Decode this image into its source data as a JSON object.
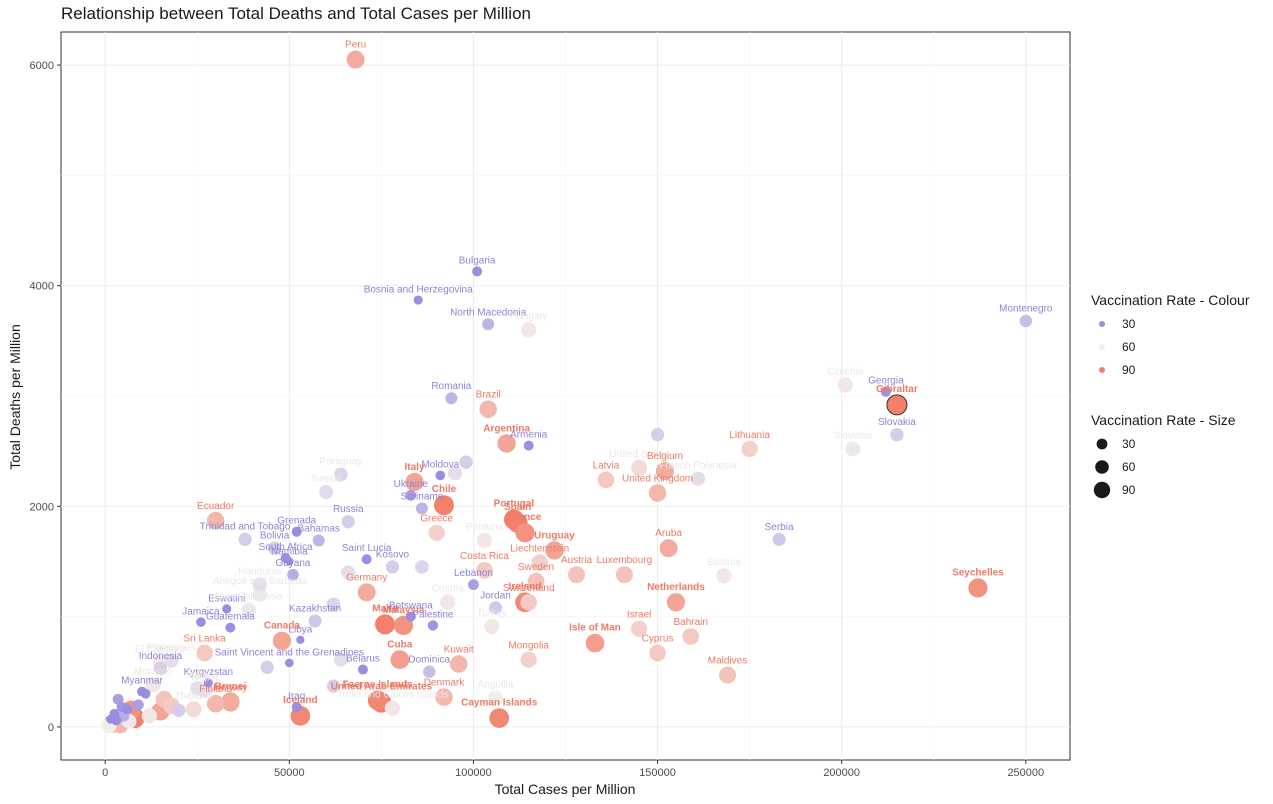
{
  "chart_data": {
    "type": "scatter",
    "title": "Relationship between Total Deaths and Total Cases per Million",
    "xlabel": "Total Cases per Million",
    "ylabel": "Total Deaths per Million",
    "xlim": [
      -12000,
      262000
    ],
    "ylim": [
      -300,
      6300
    ],
    "x_ticks": [
      0,
      50000,
      100000,
      150000,
      200000,
      250000
    ],
    "y_ticks": [
      0,
      2000,
      4000,
      6000
    ],
    "grid": true,
    "legend_position": "right",
    "legend": {
      "colour_title": "Vaccination Rate - Colour",
      "size_title": "Vaccination Rate - Size",
      "levels": [
        30,
        60,
        90
      ]
    },
    "color_scale": {
      "low": "#9b8ee0",
      "mid": "#f3eeee",
      "high": "#f2806a"
    },
    "points": [
      {
        "country": "Bulgaria",
        "x": 101000,
        "y": 4130,
        "vacc": 30
      },
      {
        "country": "Bosnia and Herzegovina",
        "x": 85000,
        "y": 3870,
        "vacc": 25
      },
      {
        "country": "North Macedonia",
        "x": 104000,
        "y": 3650,
        "vacc": 42
      },
      {
        "country": "Hungary",
        "x": 115000,
        "y": 3600,
        "vacc": 62
      },
      {
        "country": "Montenegro",
        "x": 250000,
        "y": 3680,
        "vacc": 45
      },
      {
        "country": "Peru",
        "x": 68000,
        "y": 6050,
        "vacc": 78
      },
      {
        "country": "Georgia",
        "x": 212000,
        "y": 3040,
        "vacc": 32
      },
      {
        "country": "Czechia",
        "x": 201000,
        "y": 3100,
        "vacc": 62
      },
      {
        "country": "Gibraltar",
        "x": 215000,
        "y": 2920,
        "vacc": 120
      },
      {
        "country": "Slovakia",
        "x": 215000,
        "y": 2650,
        "vacc": 50
      },
      {
        "country": "Slovenia",
        "x": 203000,
        "y": 2520,
        "vacc": 58
      },
      {
        "country": "Lithuania",
        "x": 175000,
        "y": 2520,
        "vacc": 68
      },
      {
        "country": "Romania",
        "x": 94000,
        "y": 2980,
        "vacc": 42
      },
      {
        "country": "Brazil",
        "x": 104000,
        "y": 2880,
        "vacc": 75
      },
      {
        "country": "Argentina",
        "x": 109000,
        "y": 2570,
        "vacc": 80
      },
      {
        "country": "Armenia",
        "x": 115000,
        "y": 2550,
        "vacc": 30
      },
      {
        "country": "Italy",
        "x": 84000,
        "y": 2220,
        "vacc": 80
      },
      {
        "country": "Moldova",
        "x": 91000,
        "y": 2280,
        "vacc": 28
      },
      {
        "country": "Paraguay",
        "x": 64000,
        "y": 2290,
        "vacc": 52
      },
      {
        "country": "Tunisia",
        "x": 60000,
        "y": 2130,
        "vacc": 54
      },
      {
        "country": "Ukraine",
        "x": 83000,
        "y": 2100,
        "vacc": 35
      },
      {
        "country": "Chile",
        "x": 92000,
        "y": 2010,
        "vacc": 90
      },
      {
        "country": "United States",
        "x": 145000,
        "y": 2350,
        "vacc": 65
      },
      {
        "country": "Belgium",
        "x": 152000,
        "y": 2320,
        "vacc": 78
      },
      {
        "country": "Latvia",
        "x": 136000,
        "y": 2240,
        "vacc": 70
      },
      {
        "country": "United Kingdom",
        "x": 150000,
        "y": 2120,
        "vacc": 75
      },
      {
        "country": "French Polynesia",
        "x": 161000,
        "y": 2250,
        "vacc": 55
      },
      {
        "country": "Portugal",
        "x": 111000,
        "y": 1880,
        "vacc": 95
      },
      {
        "country": "Spain",
        "x": 112000,
        "y": 1850,
        "vacc": 92
      },
      {
        "country": "France",
        "x": 114000,
        "y": 1760,
        "vacc": 85
      },
      {
        "country": "Uruguay",
        "x": 122000,
        "y": 1600,
        "vacc": 80
      },
      {
        "country": "Greece",
        "x": 90000,
        "y": 1760,
        "vacc": 68
      },
      {
        "country": "Panama",
        "x": 103000,
        "y": 1690,
        "vacc": 62
      },
      {
        "country": "Liechtenstein",
        "x": 118000,
        "y": 1490,
        "vacc": 68
      },
      {
        "country": "Aruba",
        "x": 153000,
        "y": 1620,
        "vacc": 78
      },
      {
        "country": "Serbia",
        "x": 183000,
        "y": 1700,
        "vacc": 48
      },
      {
        "country": "Costa Rica",
        "x": 103000,
        "y": 1420,
        "vacc": 70
      },
      {
        "country": "Sweden",
        "x": 117000,
        "y": 1320,
        "vacc": 72
      },
      {
        "country": "Austria",
        "x": 128000,
        "y": 1380,
        "vacc": 72
      },
      {
        "country": "Luxembourg",
        "x": 141000,
        "y": 1380,
        "vacc": 72
      },
      {
        "country": "Estonia",
        "x": 168000,
        "y": 1370,
        "vacc": 62
      },
      {
        "country": "Seychelles",
        "x": 237000,
        "y": 1260,
        "vacc": 85
      },
      {
        "country": "Switzerland",
        "x": 115000,
        "y": 1130,
        "vacc": 70
      },
      {
        "country": "Ireland",
        "x": 114000,
        "y": 1130,
        "vacc": 88
      },
      {
        "country": "Netherlands",
        "x": 155000,
        "y": 1130,
        "vacc": 80
      },
      {
        "country": "Jordan",
        "x": 106000,
        "y": 1080,
        "vacc": 48
      },
      {
        "country": "Lebanon",
        "x": 100000,
        "y": 1290,
        "vacc": 35
      },
      {
        "country": "Kosovo",
        "x": 78000,
        "y": 1450,
        "vacc": 50
      },
      {
        "country": "Germany",
        "x": 71000,
        "y": 1220,
        "vacc": 78
      },
      {
        "country": "Croatia",
        "x": 93000,
        "y": 1130,
        "vacc": 62
      },
      {
        "country": "Ecuador",
        "x": 30000,
        "y": 1870,
        "vacc": 75
      },
      {
        "country": "Grenada",
        "x": 52000,
        "y": 1770,
        "vacc": 30
      },
      {
        "country": "Russia",
        "x": 66000,
        "y": 1860,
        "vacc": 50
      },
      {
        "country": "Suriname",
        "x": 86000,
        "y": 1980,
        "vacc": 42
      },
      {
        "country": "Bolivia",
        "x": 46000,
        "y": 1620,
        "vacc": 50
      },
      {
        "country": "Bahamas",
        "x": 58000,
        "y": 1690,
        "vacc": 42
      },
      {
        "country": "Trinidad and Tobago",
        "x": 38000,
        "y": 1700,
        "vacc": 50
      },
      {
        "country": "Saint Lucia",
        "x": 71000,
        "y": 1520,
        "vacc": 30
      },
      {
        "country": "South Africa",
        "x": 49000,
        "y": 1530,
        "vacc": 30
      },
      {
        "country": "Namibia",
        "x": 50000,
        "y": 1500,
        "vacc": 20
      },
      {
        "country": "Guyana",
        "x": 51000,
        "y": 1380,
        "vacc": 40
      },
      {
        "country": "Honduras",
        "x": 42000,
        "y": 1290,
        "vacc": 55
      },
      {
        "country": "Antigua and Barbuda",
        "x": 42000,
        "y": 1200,
        "vacc": 58
      },
      {
        "country": "Eswatini",
        "x": 33000,
        "y": 1070,
        "vacc": 25
      },
      {
        "country": "New Caledonia",
        "x": 39000,
        "y": 1060,
        "vacc": 58
      },
      {
        "country": "Kazakhstan",
        "x": 57000,
        "y": 960,
        "vacc": 48
      },
      {
        "country": "Jamaica",
        "x": 26000,
        "y": 950,
        "vacc": 28
      },
      {
        "country": "Guatemala",
        "x": 34000,
        "y": 900,
        "vacc": 30
      },
      {
        "country": "Malta",
        "x": 76000,
        "y": 930,
        "vacc": 90
      },
      {
        "country": "Malaysia",
        "x": 81000,
        "y": 920,
        "vacc": 85
      },
      {
        "country": "Botswana",
        "x": 83000,
        "y": 1000,
        "vacc": 30
      },
      {
        "country": "Palestine",
        "x": 89000,
        "y": 920,
        "vacc": 32
      },
      {
        "country": "Turkey",
        "x": 105000,
        "y": 910,
        "vacc": 62
      },
      {
        "country": "Israel",
        "x": 145000,
        "y": 890,
        "vacc": 68
      },
      {
        "country": "Bahrain",
        "x": 159000,
        "y": 820,
        "vacc": 70
      },
      {
        "country": "Isle of Man",
        "x": 133000,
        "y": 760,
        "vacc": 82
      },
      {
        "country": "Cyprus",
        "x": 150000,
        "y": 670,
        "vacc": 70
      },
      {
        "country": "Maldives",
        "x": 169000,
        "y": 470,
        "vacc": 72
      },
      {
        "country": "Libya",
        "x": 53000,
        "y": 790,
        "vacc": 20
      },
      {
        "country": "Canada",
        "x": 48000,
        "y": 780,
        "vacc": 80
      },
      {
        "country": "Sri Lanka",
        "x": 27000,
        "y": 670,
        "vacc": 70
      },
      {
        "country": "El Salvador",
        "x": 15000,
        "y": 580,
        "vacc": 62
      },
      {
        "country": "Philippines",
        "x": 18000,
        "y": 600,
        "vacc": 55
      },
      {
        "country": "Indonesia",
        "x": 15000,
        "y": 530,
        "vacc": 50
      },
      {
        "country": "Cuba",
        "x": 80000,
        "y": 610,
        "vacc": 82
      },
      {
        "country": "Kuwait",
        "x": 96000,
        "y": 570,
        "vacc": 75
      },
      {
        "country": "Mongolia",
        "x": 115000,
        "y": 610,
        "vacc": 68
      },
      {
        "country": "Saint Vincent and the Grenadines",
        "x": 50000,
        "y": 580,
        "vacc": 22
      },
      {
        "country": "Kyrgyzstan",
        "x": 28000,
        "y": 400,
        "vacc": 25
      },
      {
        "country": "India",
        "x": 25000,
        "y": 350,
        "vacc": 55
      },
      {
        "country": "Dominica",
        "x": 88000,
        "y": 500,
        "vacc": 45
      },
      {
        "country": "Belarus",
        "x": 70000,
        "y": 520,
        "vacc": 30
      },
      {
        "country": "Denmark",
        "x": 92000,
        "y": 270,
        "vacc": 75
      },
      {
        "country": "Anguilla",
        "x": 106000,
        "y": 260,
        "vacc": 60
      },
      {
        "country": "Myanmar",
        "x": 10000,
        "y": 320,
        "vacc": 30
      },
      {
        "country": "Morocco",
        "x": 13000,
        "y": 380,
        "vacc": 62
      },
      {
        "country": "Nepal",
        "x": 27000,
        "y": 330,
        "vacc": 55
      },
      {
        "country": "Thailand",
        "x": 24000,
        "y": 160,
        "vacc": 65
      },
      {
        "country": "Norway",
        "x": 34000,
        "y": 220,
        "vacc": 78
      },
      {
        "country": "Finland",
        "x": 30000,
        "y": 210,
        "vacc": 75
      },
      {
        "country": "Brunei",
        "x": 34000,
        "y": 230,
        "vacc": 80
      },
      {
        "country": "Iceland",
        "x": 53000,
        "y": 100,
        "vacc": 88
      },
      {
        "country": "Iraq",
        "x": 52000,
        "y": 180,
        "vacc": 30
      },
      {
        "country": "Faeroe Islands",
        "x": 74000,
        "y": 240,
        "vacc": 88
      },
      {
        "country": "United Arab Emirates",
        "x": 75000,
        "y": 220,
        "vacc": 98
      },
      {
        "country": "Turks and Caicos Islands",
        "x": 78000,
        "y": 170,
        "vacc": 62
      },
      {
        "country": "Cayman Islands",
        "x": 107000,
        "y": 80,
        "vacc": 88
      },
      {
        "country": "",
        "x": 1000,
        "y": 10,
        "vacc": 60
      },
      {
        "country": "",
        "x": 2000,
        "y": 30,
        "vacc": 80
      },
      {
        "country": "",
        "x": 3000,
        "y": 60,
        "vacc": 30
      },
      {
        "country": "",
        "x": 4000,
        "y": 20,
        "vacc": 75
      },
      {
        "country": "",
        "x": 5000,
        "y": 100,
        "vacc": 40
      },
      {
        "country": "",
        "x": 6000,
        "y": 160,
        "vacc": 30
      },
      {
        "country": "",
        "x": 7000,
        "y": 150,
        "vacc": 85
      },
      {
        "country": "",
        "x": 8000,
        "y": 80,
        "vacc": 90
      },
      {
        "country": "",
        "x": 9000,
        "y": 200,
        "vacc": 35
      },
      {
        "country": "",
        "x": 2500,
        "y": 120,
        "vacc": 28
      },
      {
        "country": "",
        "x": 4500,
        "y": 180,
        "vacc": 32
      },
      {
        "country": "",
        "x": 12000,
        "y": 100,
        "vacc": 62
      },
      {
        "country": "",
        "x": 15000,
        "y": 140,
        "vacc": 80
      },
      {
        "country": "",
        "x": 18000,
        "y": 190,
        "vacc": 70
      },
      {
        "country": "",
        "x": 20000,
        "y": 150,
        "vacc": 50
      },
      {
        "country": "",
        "x": 16000,
        "y": 250,
        "vacc": 72
      },
      {
        "country": "",
        "x": 11000,
        "y": 300,
        "vacc": 28
      },
      {
        "country": "",
        "x": 6500,
        "y": 50,
        "vacc": 58
      },
      {
        "country": "",
        "x": 1500,
        "y": 70,
        "vacc": 25
      },
      {
        "country": "",
        "x": 3500,
        "y": 250,
        "vacc": 35
      },
      {
        "country": "",
        "x": 150000,
        "y": 2650,
        "vacc": 50
      },
      {
        "country": "",
        "x": 66000,
        "y": 1400,
        "vacc": 55
      },
      {
        "country": "",
        "x": 95000,
        "y": 2300,
        "vacc": 55
      },
      {
        "country": "",
        "x": 98000,
        "y": 2400,
        "vacc": 50
      },
      {
        "country": "",
        "x": 62000,
        "y": 1110,
        "vacc": 52
      },
      {
        "country": "",
        "x": 64000,
        "y": 610,
        "vacc": 55
      },
      {
        "country": "",
        "x": 86000,
        "y": 1450,
        "vacc": 52
      },
      {
        "country": "",
        "x": 62000,
        "y": 370,
        "vacc": 50
      },
      {
        "country": "",
        "x": 44000,
        "y": 540,
        "vacc": 50
      }
    ]
  }
}
